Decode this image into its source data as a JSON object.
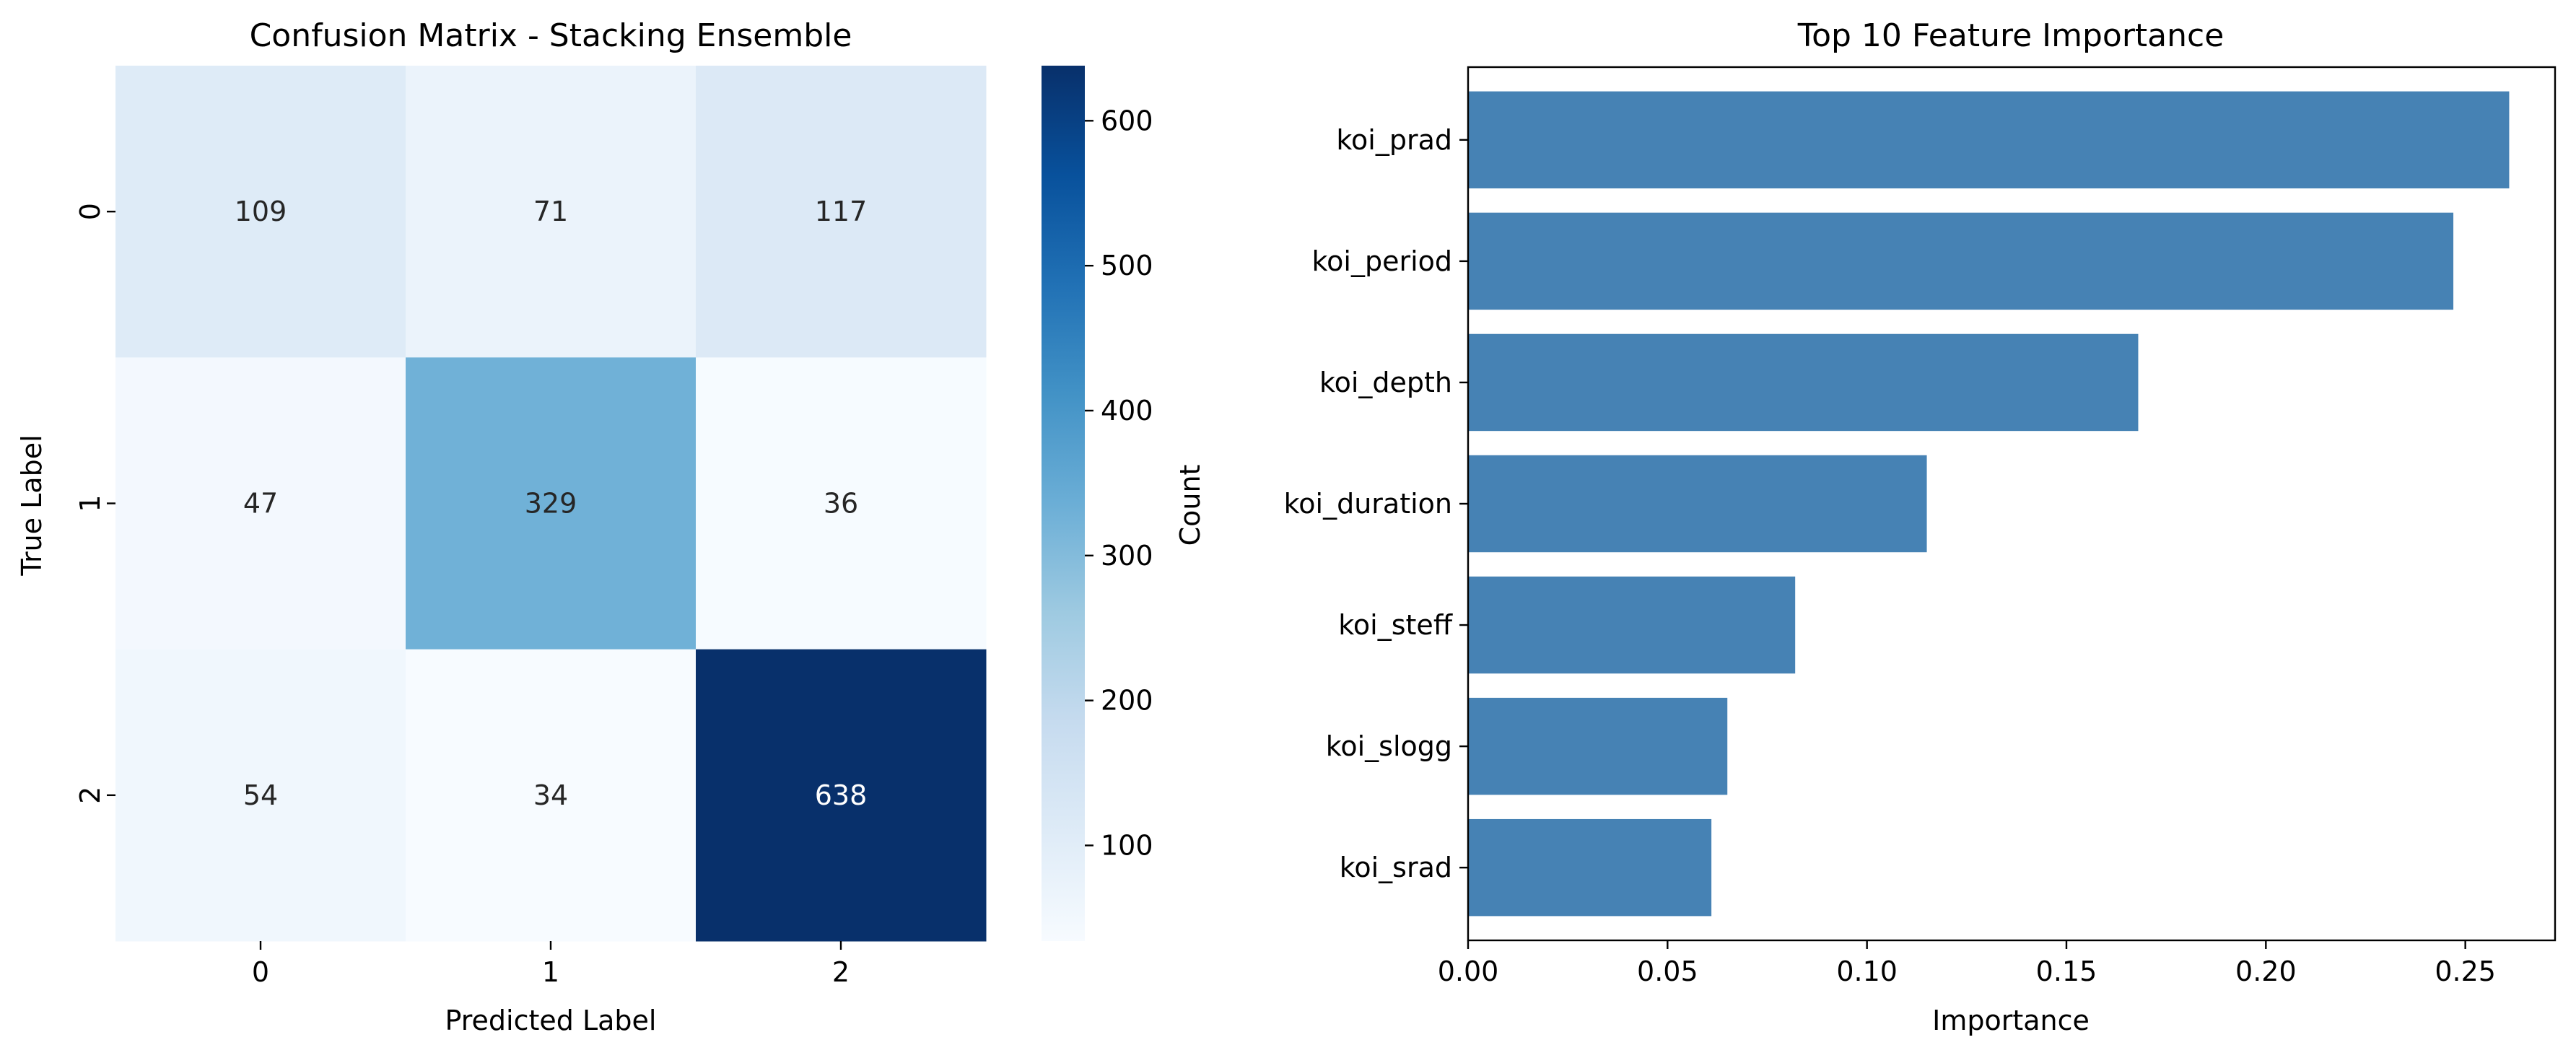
{
  "chart_data": [
    {
      "type": "heatmap",
      "title": "Confusion Matrix - Stacking Ensemble",
      "xlabel": "Predicted Label",
      "ylabel": "True Label",
      "x_categories": [
        "0",
        "1",
        "2"
      ],
      "y_categories": [
        "0",
        "1",
        "2"
      ],
      "values": [
        [
          109,
          71,
          117
        ],
        [
          47,
          329,
          36
        ],
        [
          54,
          34,
          638
        ]
      ],
      "colormap": "Blues",
      "colorbar": {
        "label": "Count",
        "range": [
          34,
          638
        ],
        "ticks": [
          100,
          200,
          300,
          400,
          500,
          600
        ]
      }
    },
    {
      "type": "bar",
      "orientation": "horizontal",
      "title": "Top 10 Feature Importance",
      "xlabel": "Importance",
      "ylabel": "",
      "categories": [
        "koi_prad",
        "koi_period",
        "koi_depth",
        "koi_duration",
        "koi_steff",
        "koi_slogg",
        "koi_srad"
      ],
      "values": [
        0.261,
        0.247,
        0.168,
        0.115,
        0.082,
        0.065,
        0.061
      ],
      "xlim": [
        0,
        0.2725
      ],
      "xticks": [
        "0.00",
        "0.05",
        "0.10",
        "0.15",
        "0.20",
        "0.25"
      ],
      "bar_color": "#4682b4",
      "grid": false
    }
  ]
}
